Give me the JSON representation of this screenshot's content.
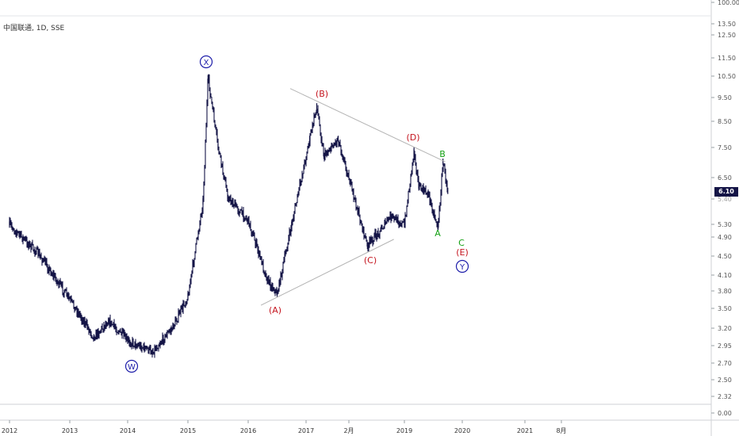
{
  "symbol_label": "中国联通, 1D, SSE",
  "colors": {
    "candles": "#141446",
    "trendline": "#b4b4b4",
    "red_label": "#c4141e",
    "green_label": "#14a014",
    "blue_label": "#1e1eaa",
    "badge": "#141446",
    "axis_text": "#555555"
  },
  "chart_data": {
    "type": "line",
    "title": "中国联通, 1D, SSE",
    "xlabel": "",
    "ylabel": "",
    "scale": "log",
    "grid": false,
    "last_price": "6.10",
    "x_ticks": [
      "2012",
      "2013",
      "2014",
      "2015",
      "2016",
      "2017",
      "2月",
      "2019",
      "2020",
      "2021",
      "8月"
    ],
    "y_ticks": [
      "100.00",
      "13.50",
      "12.50",
      "11.50",
      "10.50",
      "9.50",
      "8.50",
      "7.50",
      "6.50",
      "5.40",
      "5.30",
      "4.90",
      "4.50",
      "4.10",
      "3.80",
      "3.50",
      "3.20",
      "2.95",
      "2.70",
      "2.50",
      "2.32",
      "0.00"
    ],
    "series": [
      {
        "x": [
          "2012-01",
          "2012-07",
          "2013-03",
          "2013-06",
          "2013-09",
          "2014-01",
          "2014-06",
          "2014-10",
          "2015-01",
          "2015-04",
          "2015-05",
          "2015-07",
          "2015-09",
          "2016-01",
          "2016-05",
          "2016-07",
          "2016-10",
          "2017-02",
          "2017-04",
          "2017-06",
          "2017-10",
          "2018-03",
          "2018-05",
          "2018-08",
          "2018-10",
          "2019-01",
          "2019-03",
          "2019-04",
          "2019-06",
          "2019-07",
          "2019-08",
          "2019-09",
          "2019-10"
        ],
        "values": [
          5.2,
          4.5,
          3.4,
          3.05,
          3.3,
          3.0,
          2.85,
          3.2,
          3.7,
          5.8,
          10.4,
          7.5,
          5.9,
          5.3,
          4.0,
          3.75,
          5.2,
          7.8,
          9.1,
          7.2,
          7.8,
          5.5,
          4.7,
          5.1,
          5.4,
          5.2,
          7.4,
          6.2,
          6.0,
          5.5,
          5.15,
          7.0,
          6.1
        ]
      }
    ],
    "annotations": [
      {
        "text": "(A)",
        "color": "red"
      },
      {
        "text": "(B)",
        "color": "red"
      },
      {
        "text": "(C)",
        "color": "red"
      },
      {
        "text": "(D)",
        "color": "red"
      },
      {
        "text": "(E)",
        "color": "red"
      },
      {
        "text": "A",
        "color": "green"
      },
      {
        "text": "B",
        "color": "green"
      },
      {
        "text": "C",
        "color": "green"
      },
      {
        "text": "W",
        "color": "blue",
        "circled": true
      },
      {
        "text": "X",
        "color": "blue",
        "circled": true
      },
      {
        "text": "Y",
        "color": "blue",
        "circled": true
      }
    ]
  }
}
